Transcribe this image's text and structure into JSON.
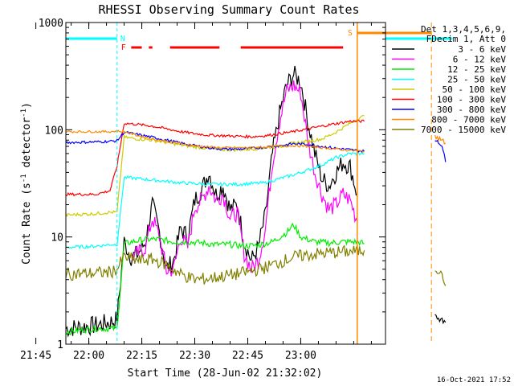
{
  "chart_data": {
    "type": "line",
    "title": "RHESSI Observing Summary Count Rates",
    "xlabel": "Start Time (28-Jun-02 21:32:02)",
    "ylabel_main": "Count Rate (s",
    "ylabel_sup1": "-1",
    "ylabel_mid": " detector",
    "ylabel_sup2": "-1",
    "ylabel_end": ")",
    "yscale": "log",
    "ylim": [
      1,
      1000
    ],
    "xlim_minutes": [
      21.5,
      112
    ],
    "xtick_minutes": [
      13,
      28,
      43,
      58,
      73,
      88
    ],
    "xtick_labels": [
      "21:45",
      "22:00",
      "22:15",
      "22:30",
      "22:45",
      "23:00"
    ],
    "ytick_values": [
      1,
      10,
      100,
      1000
    ],
    "ytick_labels": [
      "1",
      "10",
      "100",
      "1000"
    ],
    "legend_header": [
      "Det 1,3,4,5,6,9,",
      "FDecim 1, Att 0"
    ],
    "timestamp": "16-Oct-2021 17:52",
    "flag_labels": {
      "night": "N",
      "flare": "F",
      "saa": "S"
    },
    "series": [
      {
        "name": "3 - 6 keV",
        "color": "#000000",
        "points": [
          [
            21.5,
            1.4
          ],
          [
            30,
            1.5
          ],
          [
            34,
            1.6
          ],
          [
            36,
            1.7
          ],
          [
            38,
            9
          ],
          [
            40,
            6.5
          ],
          [
            42,
            7
          ],
          [
            44,
            9
          ],
          [
            46,
            20
          ],
          [
            48,
            11
          ],
          [
            50,
            5
          ],
          [
            52,
            6
          ],
          [
            54,
            12
          ],
          [
            56,
            10
          ],
          [
            58,
            22
          ],
          [
            60,
            28
          ],
          [
            62,
            40
          ],
          [
            64,
            25
          ],
          [
            66,
            30
          ],
          [
            68,
            18
          ],
          [
            70,
            20
          ],
          [
            72,
            9
          ],
          [
            74,
            6
          ],
          [
            76,
            8
          ],
          [
            78,
            16
          ],
          [
            80,
            60
          ],
          [
            82,
            140
          ],
          [
            84,
            260
          ],
          [
            86,
            330
          ],
          [
            88,
            280
          ],
          [
            90,
            120
          ],
          [
            92,
            60
          ],
          [
            94,
            35
          ],
          [
            96,
            30
          ],
          [
            98,
            40
          ],
          [
            100,
            50
          ],
          [
            102,
            45
          ],
          [
            104,
            25
          ]
        ]
      },
      {
        "name": "6 - 12 keV",
        "color": "#ff00ff",
        "points": [
          [
            40,
            6.5
          ],
          [
            42,
            7
          ],
          [
            44,
            8
          ],
          [
            46,
            15
          ],
          [
            48,
            10
          ],
          [
            50,
            4.8
          ],
          [
            52,
            5
          ],
          [
            54,
            10
          ],
          [
            56,
            8
          ],
          [
            58,
            19
          ],
          [
            60,
            22
          ],
          [
            62,
            30
          ],
          [
            64,
            22
          ],
          [
            66,
            25
          ],
          [
            68,
            15
          ],
          [
            70,
            17
          ],
          [
            72,
            7
          ],
          [
            74,
            5
          ],
          [
            76,
            6
          ],
          [
            78,
            12
          ],
          [
            80,
            50
          ],
          [
            82,
            120
          ],
          [
            84,
            230
          ],
          [
            86,
            260
          ],
          [
            88,
            220
          ],
          [
            90,
            80
          ],
          [
            92,
            40
          ],
          [
            94,
            25
          ],
          [
            96,
            18
          ],
          [
            98,
            20
          ],
          [
            100,
            25
          ],
          [
            102,
            22
          ],
          [
            104,
            14
          ]
        ]
      },
      {
        "name": "12 - 25 keV",
        "color": "#00ee00",
        "points": [
          [
            21.5,
            1.3
          ],
          [
            30,
            1.4
          ],
          [
            34,
            1.4
          ],
          [
            36,
            1.4
          ],
          [
            38,
            8.5
          ],
          [
            40,
            9
          ],
          [
            44,
            9.5
          ],
          [
            48,
            9.5
          ],
          [
            52,
            9
          ],
          [
            56,
            9
          ],
          [
            60,
            8.8
          ],
          [
            64,
            8.5
          ],
          [
            68,
            8.5
          ],
          [
            72,
            8.2
          ],
          [
            76,
            8.4
          ],
          [
            80,
            9
          ],
          [
            84,
            11
          ],
          [
            86,
            13
          ],
          [
            88,
            10
          ],
          [
            92,
            9
          ],
          [
            96,
            8.8
          ],
          [
            100,
            9
          ],
          [
            104,
            9
          ],
          [
            106,
            8.7
          ]
        ]
      },
      {
        "name": "25 - 50 keV",
        "color": "#00ffff",
        "points": [
          [
            21.5,
            8
          ],
          [
            30,
            8.2
          ],
          [
            34,
            8.5
          ],
          [
            36,
            8.5
          ],
          [
            38,
            36
          ],
          [
            42,
            35
          ],
          [
            46,
            34
          ],
          [
            50,
            33
          ],
          [
            54,
            32
          ],
          [
            58,
            31.5
          ],
          [
            62,
            31
          ],
          [
            66,
            31
          ],
          [
            70,
            31
          ],
          [
            74,
            31.5
          ],
          [
            78,
            32
          ],
          [
            82,
            35
          ],
          [
            86,
            38
          ],
          [
            90,
            42
          ],
          [
            94,
            47
          ],
          [
            98,
            55
          ],
          [
            102,
            60
          ],
          [
            106,
            60
          ]
        ]
      },
      {
        "name": "50 - 100 keV",
        "color": "#cccc00",
        "points": [
          [
            21.5,
            16
          ],
          [
            30,
            16.5
          ],
          [
            34,
            17
          ],
          [
            36,
            17
          ],
          [
            38,
            85
          ],
          [
            42,
            82
          ],
          [
            46,
            80
          ],
          [
            50,
            76
          ],
          [
            54,
            72
          ],
          [
            58,
            69
          ],
          [
            62,
            67
          ],
          [
            66,
            65
          ],
          [
            70,
            65
          ],
          [
            74,
            66
          ],
          [
            78,
            68
          ],
          [
            82,
            70
          ],
          [
            86,
            75
          ],
          [
            90,
            78
          ],
          [
            94,
            82
          ],
          [
            98,
            95
          ],
          [
            102,
            115
          ],
          [
            106,
            135
          ]
        ]
      },
      {
        "name": "100 - 300 keV",
        "color": "#ff0000",
        "points": [
          [
            21.5,
            25
          ],
          [
            30,
            25
          ],
          [
            34,
            27
          ],
          [
            36,
            46
          ],
          [
            38,
            115
          ],
          [
            42,
            112
          ],
          [
            46,
            108
          ],
          [
            50,
            102
          ],
          [
            54,
            96
          ],
          [
            58,
            92
          ],
          [
            62,
            89
          ],
          [
            66,
            88
          ],
          [
            70,
            87
          ],
          [
            74,
            86
          ],
          [
            78,
            88
          ],
          [
            82,
            92
          ],
          [
            86,
            96
          ],
          [
            90,
            102
          ],
          [
            94,
            108
          ],
          [
            98,
            114
          ],
          [
            102,
            120
          ],
          [
            106,
            120
          ]
        ]
      },
      {
        "name": "300 - 800 keV",
        "color": "#0000ff",
        "points": [
          [
            21.5,
            76
          ],
          [
            30,
            77
          ],
          [
            34,
            78
          ],
          [
            36,
            79
          ],
          [
            38,
            95
          ],
          [
            42,
            90
          ],
          [
            46,
            85
          ],
          [
            50,
            80
          ],
          [
            54,
            75
          ],
          [
            58,
            71
          ],
          [
            62,
            68
          ],
          [
            66,
            66
          ],
          [
            70,
            66
          ],
          [
            74,
            67
          ],
          [
            78,
            69
          ],
          [
            82,
            71
          ],
          [
            86,
            74
          ],
          [
            90,
            73
          ],
          [
            94,
            70
          ],
          [
            98,
            67
          ],
          [
            102,
            65
          ],
          [
            106,
            63
          ]
        ]
      },
      {
        "name": "800 - 7000 keV",
        "color": "#ff8800",
        "points": [
          [
            21.5,
            96
          ],
          [
            30,
            96
          ],
          [
            34,
            96
          ],
          [
            36,
            97
          ],
          [
            38,
            96
          ],
          [
            42,
            88
          ],
          [
            46,
            82
          ],
          [
            50,
            78
          ],
          [
            54,
            74
          ],
          [
            58,
            71
          ],
          [
            62,
            69
          ],
          [
            66,
            68
          ],
          [
            70,
            68
          ],
          [
            74,
            68
          ],
          [
            78,
            69
          ],
          [
            82,
            70
          ],
          [
            86,
            71
          ],
          [
            90,
            70
          ],
          [
            94,
            68
          ],
          [
            98,
            66
          ],
          [
            102,
            64
          ],
          [
            106,
            63
          ]
        ]
      },
      {
        "name": "7000 - 15000 keV",
        "color": "#808000",
        "points": [
          [
            21.5,
            4.5
          ],
          [
            30,
            4.6
          ],
          [
            34,
            4.7
          ],
          [
            36,
            5
          ],
          [
            38,
            6.5
          ],
          [
            42,
            6
          ],
          [
            46,
            6.2
          ],
          [
            50,
            5.5
          ],
          [
            54,
            4.5
          ],
          [
            58,
            4
          ],
          [
            62,
            4.1
          ],
          [
            66,
            4.3
          ],
          [
            70,
            4.5
          ],
          [
            74,
            4.8
          ],
          [
            78,
            5.2
          ],
          [
            82,
            5.8
          ],
          [
            86,
            6.5
          ],
          [
            90,
            6.8
          ],
          [
            94,
            7
          ],
          [
            98,
            7.2
          ],
          [
            102,
            7.3
          ],
          [
            106,
            7.5
          ]
        ]
      }
    ],
    "right_tail": [
      {
        "name": "7000 - 15000 keV",
        "points": [
          [
            126,
            5
          ],
          [
            128,
            4.5
          ],
          [
            129,
            3.5
          ]
        ]
      },
      {
        "name": "3 - 6 keV",
        "points": [
          [
            126,
            1.8
          ],
          [
            129,
            1.6
          ]
        ]
      },
      {
        "name": "300 - 800 keV",
        "points": [
          [
            126,
            80
          ],
          [
            128,
            70
          ],
          [
            129,
            50
          ]
        ]
      },
      {
        "name": "800 - 7000 keV",
        "points": [
          [
            126,
            85
          ],
          [
            128,
            80
          ],
          [
            129,
            75
          ]
        ]
      }
    ]
  }
}
